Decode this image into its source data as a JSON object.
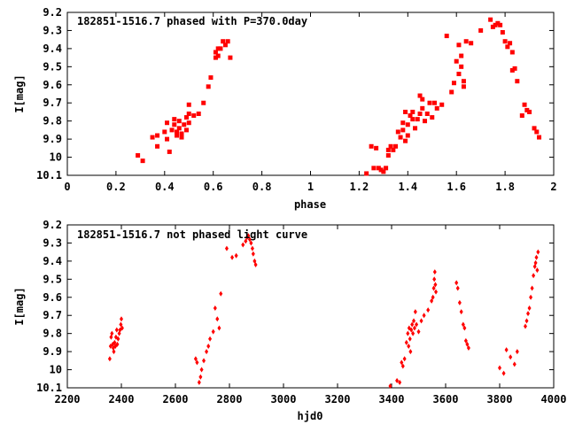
{
  "chart_data": [
    {
      "type": "scatter",
      "title": "182851-1516.7 phased with P=370.0day",
      "xlabel": "phase",
      "ylabel": "I[mag]",
      "xlim": [
        0,
        2
      ],
      "ylim": [
        10.1,
        9.2
      ],
      "y_inverted": true,
      "grid": false,
      "xticks": [
        0,
        0.2,
        0.4,
        0.6,
        0.8,
        1,
        1.2,
        1.4,
        1.6,
        1.8,
        2
      ],
      "xtick_labels": [
        "0",
        "0.2",
        "0.4",
        "0.6",
        "0.8",
        "1",
        "1.2",
        "1.4",
        "1.6",
        "1.8",
        "2"
      ],
      "yticks": [
        9.2,
        9.3,
        9.4,
        9.5,
        9.6,
        9.7,
        9.8,
        9.9,
        10,
        10.1
      ],
      "ytick_labels": [
        "9.2",
        "9.3",
        "9.4",
        "9.5",
        "9.6",
        "9.7",
        "9.8",
        "9.9",
        "10",
        "10.1"
      ],
      "marker": "filled-square",
      "color": "#ff0000",
      "series": [
        {
          "points": [
            [
              0.29,
              9.99
            ],
            [
              0.31,
              10.02
            ],
            [
              0.35,
              9.89
            ],
            [
              0.37,
              9.88
            ],
            [
              0.37,
              9.94
            ],
            [
              0.4,
              9.86
            ],
            [
              0.41,
              9.81
            ],
            [
              0.41,
              9.9
            ],
            [
              0.42,
              9.97
            ],
            [
              0.43,
              9.85
            ],
            [
              0.44,
              9.79
            ],
            [
              0.44,
              9.82
            ],
            [
              0.45,
              9.86
            ],
            [
              0.45,
              9.88
            ],
            [
              0.46,
              9.8
            ],
            [
              0.46,
              9.84
            ],
            [
              0.47,
              9.87
            ],
            [
              0.47,
              9.89
            ],
            [
              0.48,
              9.82
            ],
            [
              0.49,
              9.78
            ],
            [
              0.49,
              9.85
            ],
            [
              0.5,
              9.81
            ],
            [
              0.5,
              9.76
            ],
            [
              0.5,
              9.71
            ],
            [
              0.52,
              9.77
            ],
            [
              0.54,
              9.76
            ],
            [
              0.56,
              9.7
            ],
            [
              0.58,
              9.61
            ],
            [
              0.59,
              9.56
            ],
            [
              0.61,
              9.45
            ],
            [
              0.61,
              9.42
            ],
            [
              0.62,
              9.4
            ],
            [
              0.62,
              9.44
            ],
            [
              0.63,
              9.4
            ],
            [
              0.64,
              9.36
            ],
            [
              0.65,
              9.38
            ],
            [
              0.66,
              9.36
            ],
            [
              0.67,
              9.45
            ],
            [
              1.23,
              10.09
            ],
            [
              1.25,
              9.94
            ],
            [
              1.26,
              10.06
            ],
            [
              1.27,
              9.95
            ],
            [
              1.28,
              10.06
            ],
            [
              1.29,
              10.07
            ],
            [
              1.3,
              10.08
            ],
            [
              1.31,
              10.06
            ],
            [
              1.32,
              9.96
            ],
            [
              1.32,
              9.99
            ],
            [
              1.33,
              9.94
            ],
            [
              1.34,
              9.96
            ],
            [
              1.35,
              9.94
            ],
            [
              1.36,
              9.86
            ],
            [
              1.37,
              9.89
            ],
            [
              1.38,
              9.81
            ],
            [
              1.38,
              9.85
            ],
            [
              1.39,
              9.91
            ],
            [
              1.39,
              9.75
            ],
            [
              1.4,
              9.88
            ],
            [
              1.4,
              9.82
            ],
            [
              1.41,
              9.77
            ],
            [
              1.42,
              9.79
            ],
            [
              1.42,
              9.75
            ],
            [
              1.43,
              9.84
            ],
            [
              1.44,
              9.79
            ],
            [
              1.45,
              9.66
            ],
            [
              1.45,
              9.76
            ],
            [
              1.46,
              9.73
            ],
            [
              1.46,
              9.68
            ],
            [
              1.47,
              9.8
            ],
            [
              1.48,
              9.76
            ],
            [
              1.49,
              9.7
            ],
            [
              1.5,
              9.78
            ],
            [
              1.51,
              9.7
            ],
            [
              1.52,
              9.73
            ],
            [
              1.54,
              9.71
            ],
            [
              1.56,
              9.33
            ],
            [
              1.58,
              9.64
            ],
            [
              1.59,
              9.59
            ],
            [
              1.6,
              9.47
            ],
            [
              1.61,
              9.54
            ],
            [
              1.61,
              9.38
            ],
            [
              1.62,
              9.44
            ],
            [
              1.62,
              9.5
            ],
            [
              1.63,
              9.58
            ],
            [
              1.63,
              9.61
            ],
            [
              1.64,
              9.36
            ],
            [
              1.66,
              9.37
            ],
            [
              1.7,
              9.3
            ],
            [
              1.74,
              9.24
            ],
            [
              1.75,
              9.28
            ],
            [
              1.76,
              9.27
            ],
            [
              1.77,
              9.26
            ],
            [
              1.78,
              9.27
            ],
            [
              1.79,
              9.31
            ],
            [
              1.8,
              9.36
            ],
            [
              1.81,
              9.39
            ],
            [
              1.82,
              9.37
            ],
            [
              1.83,
              9.42
            ],
            [
              1.83,
              9.52
            ],
            [
              1.84,
              9.51
            ],
            [
              1.85,
              9.58
            ],
            [
              1.87,
              9.77
            ],
            [
              1.88,
              9.71
            ],
            [
              1.89,
              9.74
            ],
            [
              1.9,
              9.75
            ],
            [
              1.92,
              9.84
            ],
            [
              1.93,
              9.86
            ],
            [
              1.94,
              9.89
            ]
          ]
        }
      ]
    },
    {
      "type": "scatter",
      "title": "182851-1516.7 not phased light curve",
      "xlabel": "hjd0",
      "ylabel": "I[mag]",
      "xlim": [
        2200,
        4000
      ],
      "ylim": [
        10.1,
        9.2
      ],
      "y_inverted": true,
      "grid": false,
      "xticks": [
        2200,
        2400,
        2600,
        2800,
        3000,
        3200,
        3400,
        3600,
        3800,
        4000
      ],
      "xtick_labels": [
        "2200",
        "2400",
        "2600",
        "2800",
        "3000",
        "3200",
        "3400",
        "3600",
        "3800",
        "4000"
      ],
      "yticks": [
        9.2,
        9.3,
        9.4,
        9.5,
        9.6,
        9.7,
        9.8,
        9.9,
        10,
        10.1
      ],
      "ytick_labels": [
        "9.2",
        "9.3",
        "9.4",
        "9.5",
        "9.6",
        "9.7",
        "9.8",
        "9.9",
        "10",
        "10.1"
      ],
      "marker": "diamond",
      "color": "#ff0000",
      "series": [
        {
          "points": [
            [
              2357,
              9.94
            ],
            [
              2360,
              9.87
            ],
            [
              2362,
              9.82
            ],
            [
              2365,
              9.8
            ],
            [
              2368,
              9.86
            ],
            [
              2370,
              9.88
            ],
            [
              2372,
              9.9
            ],
            [
              2375,
              9.85
            ],
            [
              2378,
              9.87
            ],
            [
              2380,
              9.82
            ],
            [
              2383,
              9.78
            ],
            [
              2385,
              9.86
            ],
            [
              2388,
              9.83
            ],
            [
              2392,
              9.8
            ],
            [
              2395,
              9.78
            ],
            [
              2398,
              9.75
            ],
            [
              2400,
              9.72
            ],
            [
              2403,
              9.77
            ],
            [
              2675,
              9.94
            ],
            [
              2680,
              9.96
            ],
            [
              2688,
              10.07
            ],
            [
              2693,
              10.04
            ],
            [
              2697,
              10.0
            ],
            [
              2705,
              9.95
            ],
            [
              2715,
              9.9
            ],
            [
              2722,
              9.87
            ],
            [
              2728,
              9.83
            ],
            [
              2740,
              9.79
            ],
            [
              2747,
              9.66
            ],
            [
              2755,
              9.72
            ],
            [
              2762,
              9.77
            ],
            [
              2768,
              9.58
            ],
            [
              2790,
              9.33
            ],
            [
              2810,
              9.38
            ],
            [
              2825,
              9.37
            ],
            [
              2850,
              9.31
            ],
            [
              2860,
              9.29
            ],
            [
              2865,
              9.27
            ],
            [
              2870,
              9.26
            ],
            [
              2875,
              9.28
            ],
            [
              2880,
              9.3
            ],
            [
              2885,
              9.33
            ],
            [
              2888,
              9.36
            ],
            [
              2893,
              9.4
            ],
            [
              2897,
              9.42
            ],
            [
              3395,
              10.09
            ],
            [
              3420,
              10.06
            ],
            [
              3430,
              10.07
            ],
            [
              3437,
              9.96
            ],
            [
              3442,
              9.98
            ],
            [
              3448,
              9.94
            ],
            [
              3455,
              9.85
            ],
            [
              3460,
              9.8
            ],
            [
              3463,
              9.87
            ],
            [
              3465,
              9.77
            ],
            [
              3468,
              9.83
            ],
            [
              3470,
              9.9
            ],
            [
              3473,
              9.78
            ],
            [
              3476,
              9.75
            ],
            [
              3479,
              9.8
            ],
            [
              3482,
              9.73
            ],
            [
              3485,
              9.77
            ],
            [
              3488,
              9.68
            ],
            [
              3492,
              9.75
            ],
            [
              3500,
              9.79
            ],
            [
              3510,
              9.73
            ],
            [
              3520,
              9.7
            ],
            [
              3535,
              9.67
            ],
            [
              3548,
              9.62
            ],
            [
              3553,
              9.6
            ],
            [
              3556,
              9.55
            ],
            [
              3558,
              9.5
            ],
            [
              3560,
              9.46
            ],
            [
              3562,
              9.53
            ],
            [
              3564,
              9.57
            ],
            [
              3640,
              9.52
            ],
            [
              3645,
              9.55
            ],
            [
              3652,
              9.63
            ],
            [
              3658,
              9.68
            ],
            [
              3665,
              9.75
            ],
            [
              3670,
              9.77
            ],
            [
              3675,
              9.84
            ],
            [
              3680,
              9.86
            ],
            [
              3685,
              9.88
            ],
            [
              3800,
              9.99
            ],
            [
              3815,
              10.02
            ],
            [
              3825,
              9.89
            ],
            [
              3840,
              9.93
            ],
            [
              3855,
              9.97
            ],
            [
              3865,
              9.9
            ],
            [
              3895,
              9.76
            ],
            [
              3900,
              9.73
            ],
            [
              3905,
              9.69
            ],
            [
              3910,
              9.66
            ],
            [
              3915,
              9.6
            ],
            [
              3920,
              9.55
            ],
            [
              3925,
              9.48
            ],
            [
              3930,
              9.43
            ],
            [
              3933,
              9.41
            ],
            [
              3936,
              9.38
            ],
            [
              3939,
              9.45
            ],
            [
              3942,
              9.35
            ]
          ]
        }
      ]
    }
  ]
}
